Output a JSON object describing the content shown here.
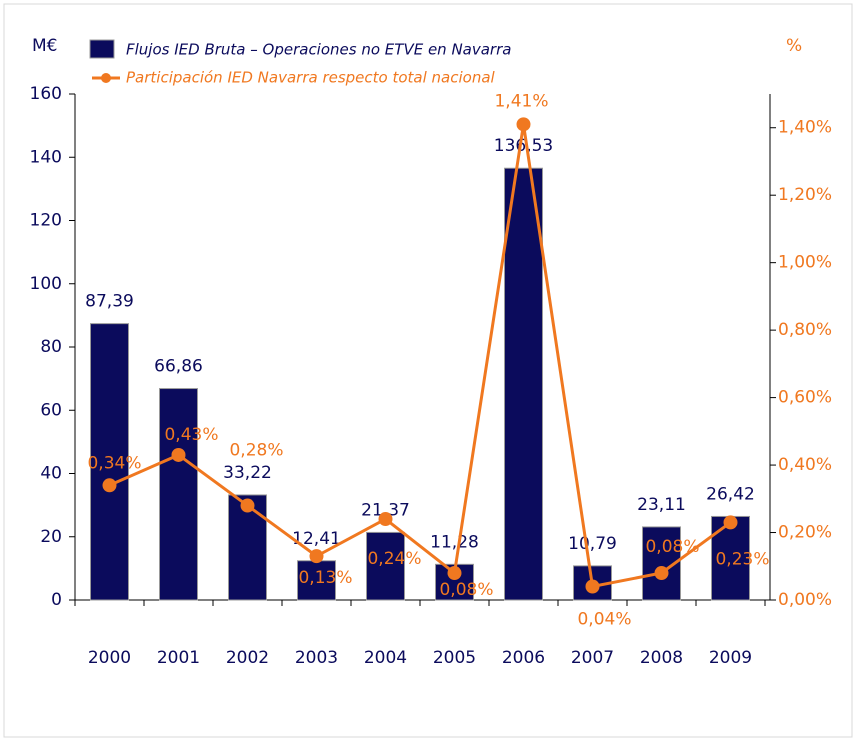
{
  "chart_data": {
    "type": "bar_line",
    "y_label": "M€",
    "y2_label": "%",
    "categories": [
      "2000",
      "2001",
      "2002",
      "2003",
      "2004",
      "2005",
      "2006",
      "2007",
      "2008",
      "2009"
    ],
    "series": [
      {
        "name": "Flujos IED Bruta – Operaciones no ETVE en Navarra",
        "type": "bar",
        "color": "#0b0b5c",
        "values": [
          87.39,
          66.86,
          33.22,
          12.41,
          21.37,
          11.28,
          136.53,
          10.79,
          23.11,
          26.42
        ],
        "value_labels": [
          "87,39",
          "66,86",
          "33,22",
          "12,41",
          "21,37",
          "11,28",
          "136,53",
          "10,79",
          "23,11",
          "26,42"
        ]
      },
      {
        "name": "Participación IED Navarra respecto total nacional",
        "type": "line",
        "color": "#f07820",
        "axis": "y2",
        "values": [
          0.34,
          0.43,
          0.28,
          0.13,
          0.24,
          0.08,
          1.41,
          0.04,
          0.08,
          0.23
        ],
        "value_labels": [
          "0,34%",
          "0,43%",
          "0,28%",
          "0,13%",
          "0,24%",
          "0,08%",
          "1,41%",
          "0,04%",
          "0,08%",
          "0,23%"
        ]
      }
    ],
    "ylim": [
      0,
      160
    ],
    "yticks": [
      0,
      20,
      40,
      60,
      80,
      100,
      120,
      140,
      160
    ],
    "y2lim": [
      0,
      1.5
    ],
    "y2ticks": [
      {
        "value": 0,
        "label": "0,00%"
      },
      {
        "value": 0.2,
        "label": "0,20%"
      },
      {
        "value": 0.4,
        "label": "0,40%"
      },
      {
        "value": 0.6,
        "label": "0,60%"
      },
      {
        "value": 0.8,
        "label": "0,80%"
      },
      {
        "value": 1.0,
        "label": "1,00%"
      },
      {
        "value": 1.2,
        "label": "1,20%"
      },
      {
        "value": 1.4,
        "label": "1,40%"
      }
    ],
    "grid": false
  }
}
